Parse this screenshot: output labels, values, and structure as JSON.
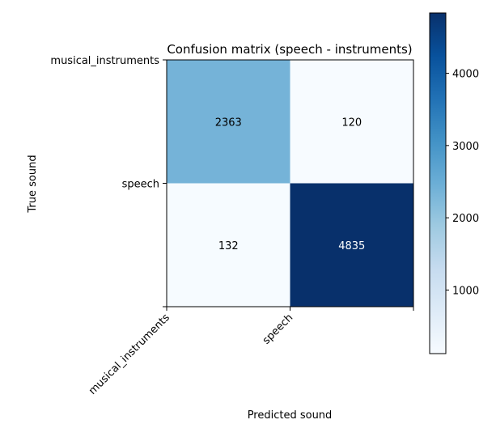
{
  "chart_data": {
    "type": "heatmap",
    "title": "Confusion matrix (speech - instruments)",
    "xlabel": "Predicted sound",
    "ylabel": "True sound",
    "x_categories": [
      "musical_instruments",
      "speech"
    ],
    "y_categories": [
      "musical_instruments",
      "speech"
    ],
    "values": [
      [
        2363,
        120
      ],
      [
        132,
        4835
      ]
    ],
    "colormap": "Blues",
    "colorbar": {
      "ticks": [
        1000,
        2000,
        3000,
        4000
      ],
      "vmin": 120,
      "vmax": 4835
    },
    "grid": false
  }
}
